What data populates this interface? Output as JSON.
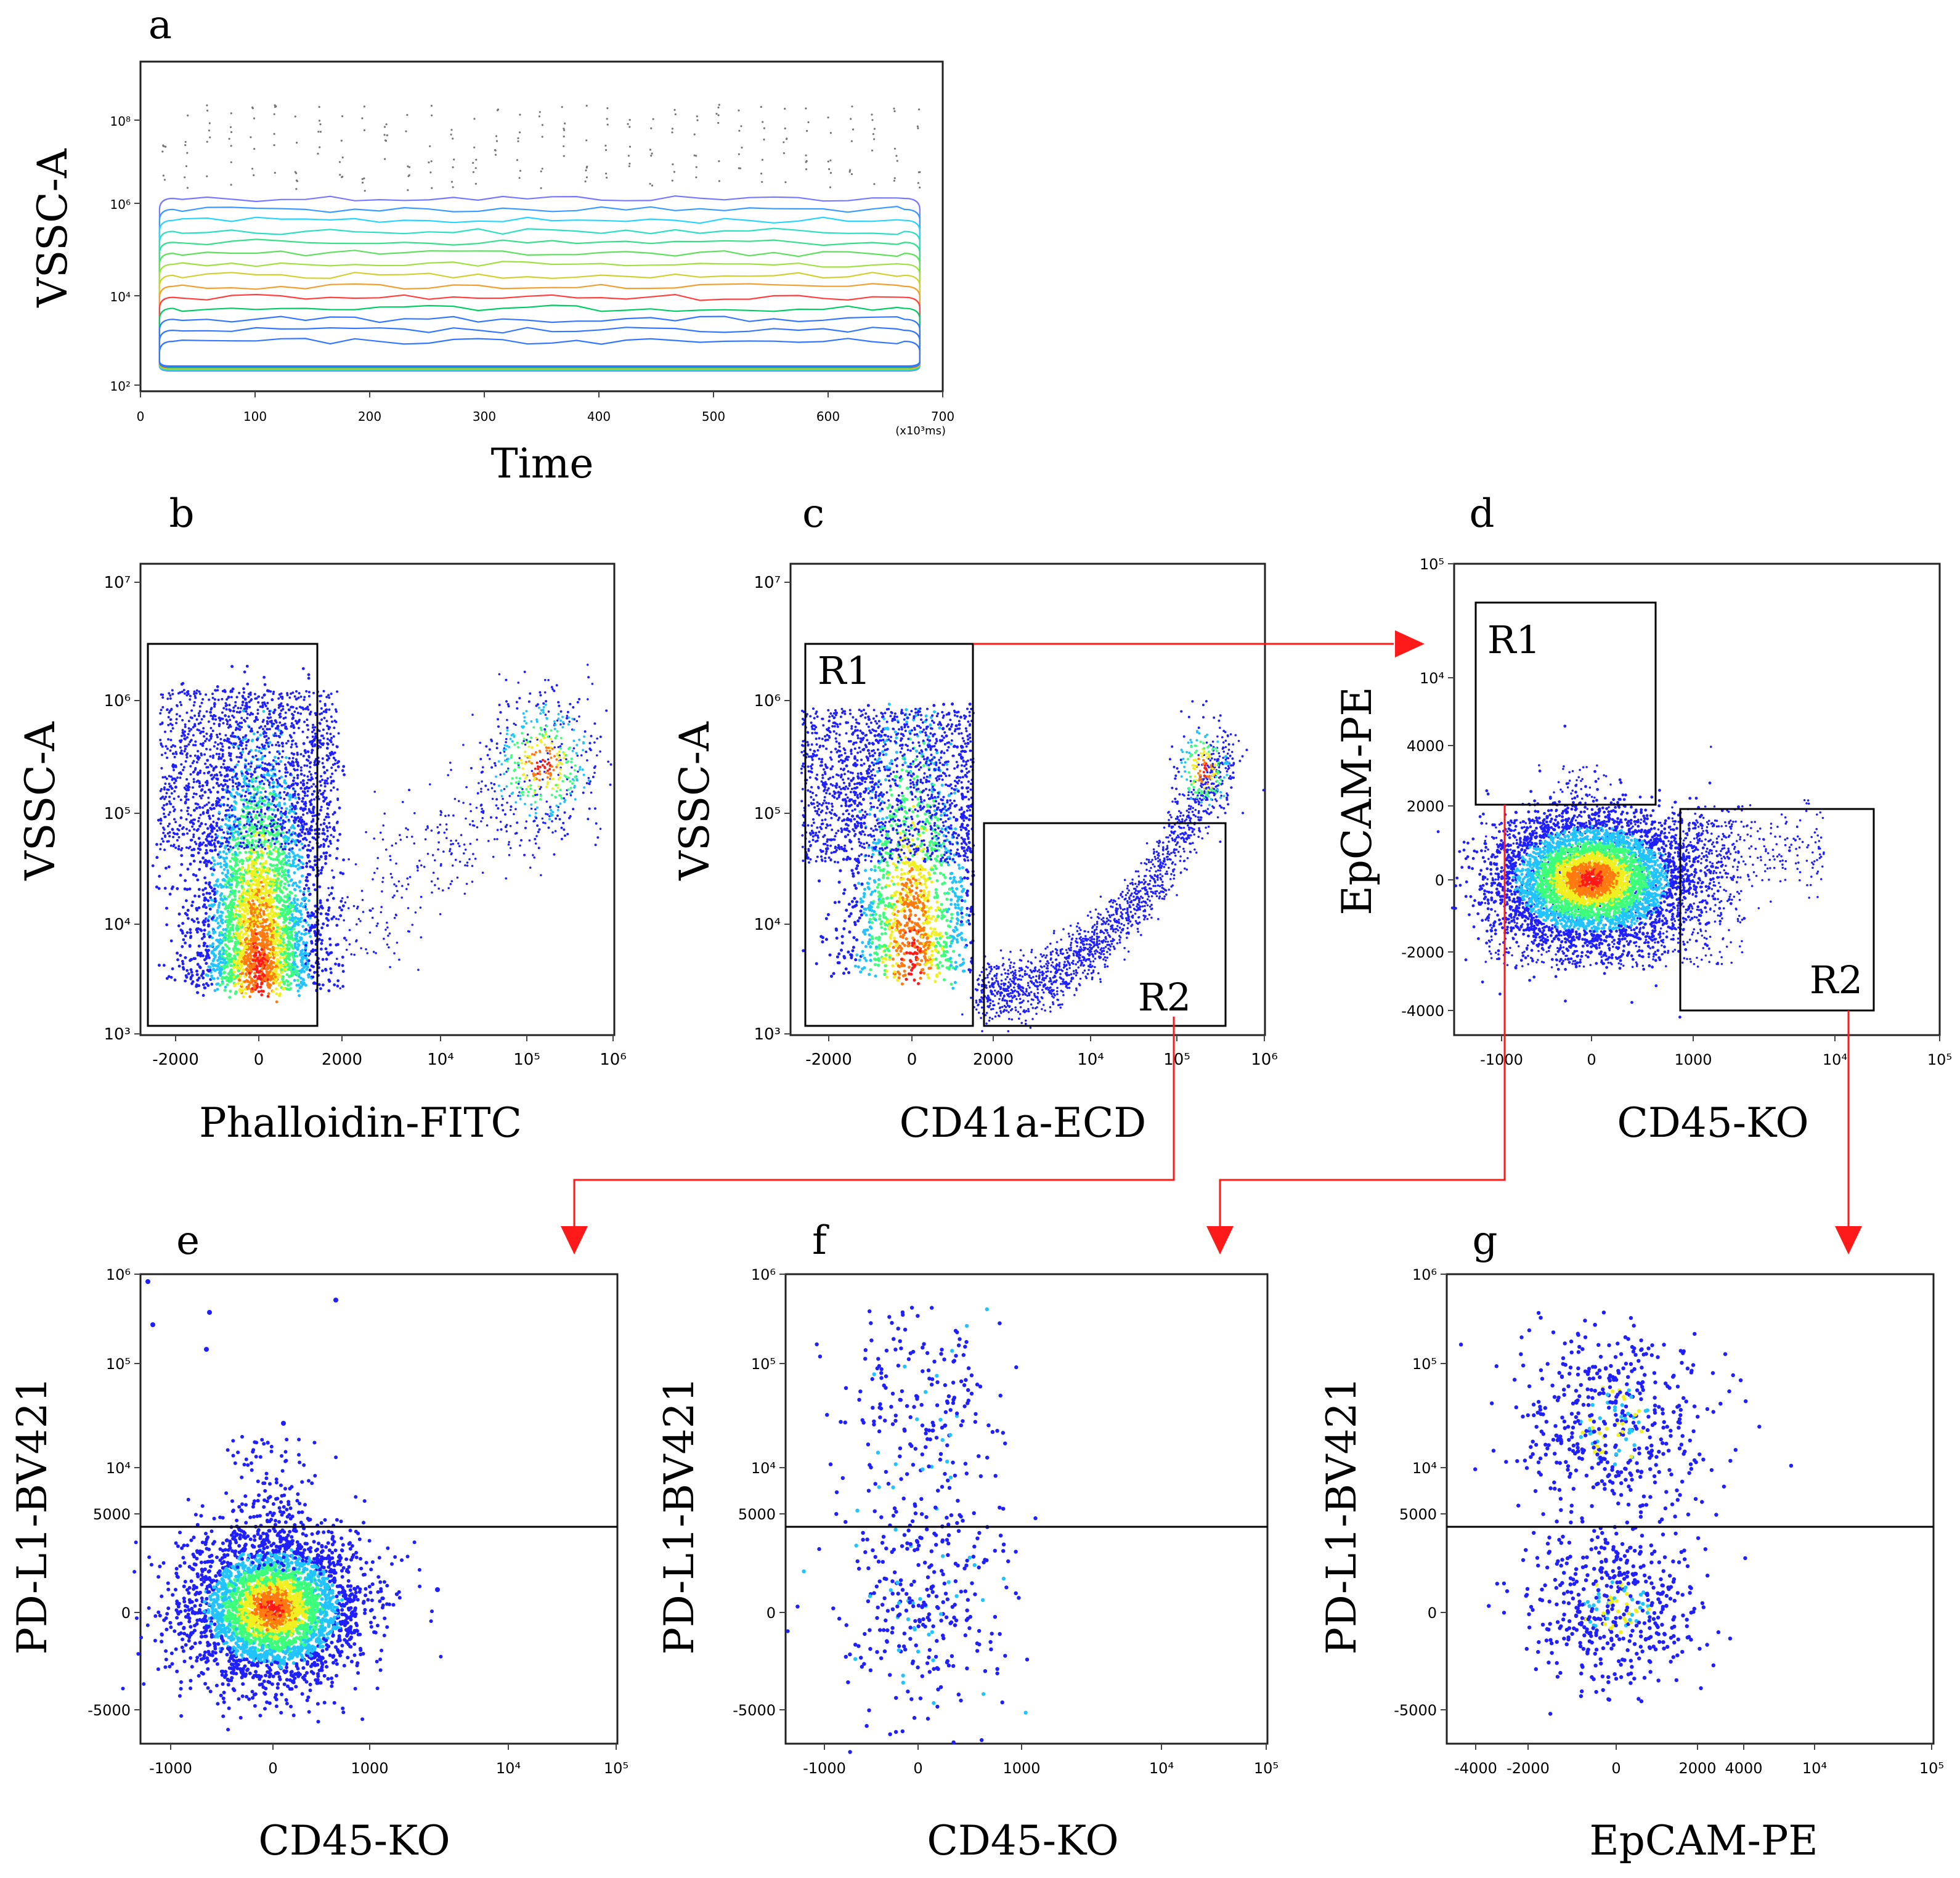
{
  "figure": {
    "description_free": true,
    "arrow_color": "#ff1a1a",
    "density_colors": [
      "#1f1fff",
      "#22c4ff",
      "#3cff7a",
      "#f0f020",
      "#ff7a10",
      "#ff1a1a"
    ],
    "contour_colors": [
      "#7777ff",
      "#3a9bff",
      "#27d4ff",
      "#2be0c0",
      "#35e08a",
      "#5ee05e",
      "#a0e040",
      "#d0d030",
      "#f0a030",
      "#ff4040",
      "#00cc66",
      "#3377ff"
    ]
  },
  "chart_data": [
    {
      "id": "a",
      "panel_letter": "a",
      "type": "contour",
      "title": "",
      "xlabel": "Time",
      "ylabel": "VSSC-A",
      "x_unit_note": "(x10³ms)",
      "xlim": [
        0,
        700
      ],
      "x_ticks": [
        "0",
        "100",
        "200",
        "300",
        "400",
        "500",
        "600",
        "700"
      ],
      "y_ticks": [
        "10²",
        "10⁴",
        "10⁶",
        "10⁸"
      ],
      "events_time_range": [
        15,
        680
      ],
      "contour_log_range": [
        2.1,
        5.9
      ]
    },
    {
      "id": "b",
      "panel_letter": "b",
      "type": "scatter",
      "xlabel": "Phalloidin-FITC",
      "ylabel": "VSSC-A",
      "x_ticks": [
        "-2000",
        "0",
        "2000",
        "10⁴",
        "10⁵",
        "10⁶"
      ],
      "y_ticks": [
        "10³",
        "10⁴",
        "10⁵",
        "10⁶",
        "10⁷"
      ],
      "gates": [
        {
          "label": "",
          "x_range": [
            -2600,
            1500
          ],
          "y_log_range": [
            3.0,
            6.3
          ]
        }
      ],
      "populations": [
        {
          "center_x": 0,
          "center_log_y": 3.6,
          "spread_x": 450,
          "spread_log_y": 0.55
        },
        {
          "center_x": "1e5",
          "center_log_y": 5.2,
          "spread": "sparse"
        }
      ]
    },
    {
      "id": "c",
      "panel_letter": "c",
      "type": "scatter",
      "xlabel": "CD41a-ECD",
      "ylabel": "VSSC-A",
      "x_ticks": [
        "-2000",
        "0",
        "2000",
        "10⁴",
        "10⁵",
        "10⁶"
      ],
      "y_ticks": [
        "10³",
        "10⁴",
        "10⁵",
        "10⁶",
        "10⁷"
      ],
      "gates": [
        {
          "label": "R1",
          "x_range": [
            -2600,
            1500
          ],
          "y_log_range": [
            3.0,
            6.3
          ]
        },
        {
          "label": "R2",
          "x_range": [
            1700,
            300000
          ],
          "y_log_range": [
            3.0,
            4.85
          ]
        }
      ]
    },
    {
      "id": "d",
      "panel_letter": "d",
      "type": "scatter",
      "xlabel": "CD45-KO",
      "ylabel": "EpCAM-PE",
      "x_ticks": [
        "-1000",
        "0",
        "1000",
        "10⁴",
        "10⁵"
      ],
      "y_ticks": [
        "-4000",
        "-2000",
        "0",
        "2000",
        "4000",
        "10⁴",
        "10⁵"
      ],
      "gates": [
        {
          "label": "R1",
          "x_range": [
            -1200,
            600
          ],
          "y_range": [
            2000,
            50000
          ]
        },
        {
          "label": "R2",
          "x_range": [
            900,
            30000
          ],
          "y_range": [
            -4000,
            1900
          ]
        }
      ],
      "populations": [
        {
          "center_x": 0,
          "center_y": 0,
          "spread_x": 400,
          "spread_y": 800
        }
      ]
    },
    {
      "id": "e",
      "panel_letter": "e",
      "type": "scatter",
      "xlabel": "CD45-KO",
      "ylabel": "PD-L1-BV421",
      "x_ticks": [
        "-1000",
        "0",
        "1000",
        "10⁴",
        "10⁵"
      ],
      "y_ticks": [
        "-5000",
        "0",
        "5000",
        "10⁴",
        "10⁵",
        "10⁶"
      ],
      "y_ticks_display": [
        "-5000",
        "0",
        "5000",
        "10⁴",
        "10⁵",
        "10⁶"
      ],
      "threshold_y": 4500,
      "populations": [
        {
          "center_x": 0,
          "center_y": -500,
          "spread_x": 300,
          "spread_y": 1600
        }
      ]
    },
    {
      "id": "f",
      "panel_letter": "f",
      "type": "scatter",
      "xlabel": "CD45-KO",
      "ylabel": "PD-L1-BV421",
      "x_ticks": [
        "-1000",
        "0",
        "1000",
        "10⁴",
        "10⁵"
      ],
      "y_ticks": [
        "-5000",
        "0",
        "5000",
        "10⁴",
        "10⁵",
        "10⁶"
      ],
      "threshold_y": 4500,
      "populations": [
        {
          "center_x": 0,
          "center_y": 0,
          "spread": "low"
        },
        {
          "center_x": 0,
          "center_log_y": 4.0,
          "spread": "low"
        }
      ]
    },
    {
      "id": "g",
      "panel_letter": "g",
      "type": "scatter",
      "xlabel": "EpCAM-PE",
      "ylabel": "PD-L1-BV421",
      "x_ticks": [
        "-4000",
        "-2000",
        "0",
        "2000",
        "4000",
        "10⁴",
        "10⁵"
      ],
      "y_ticks": [
        "-5000",
        "0",
        "5000",
        "10⁴",
        "10⁵",
        "10⁶"
      ],
      "threshold_y": 4500,
      "populations": [
        {
          "center_x": 0,
          "center_y": 0,
          "spread": "low"
        },
        {
          "center_x": 0,
          "center_log_y": 4.2,
          "spread": "low"
        }
      ]
    }
  ]
}
